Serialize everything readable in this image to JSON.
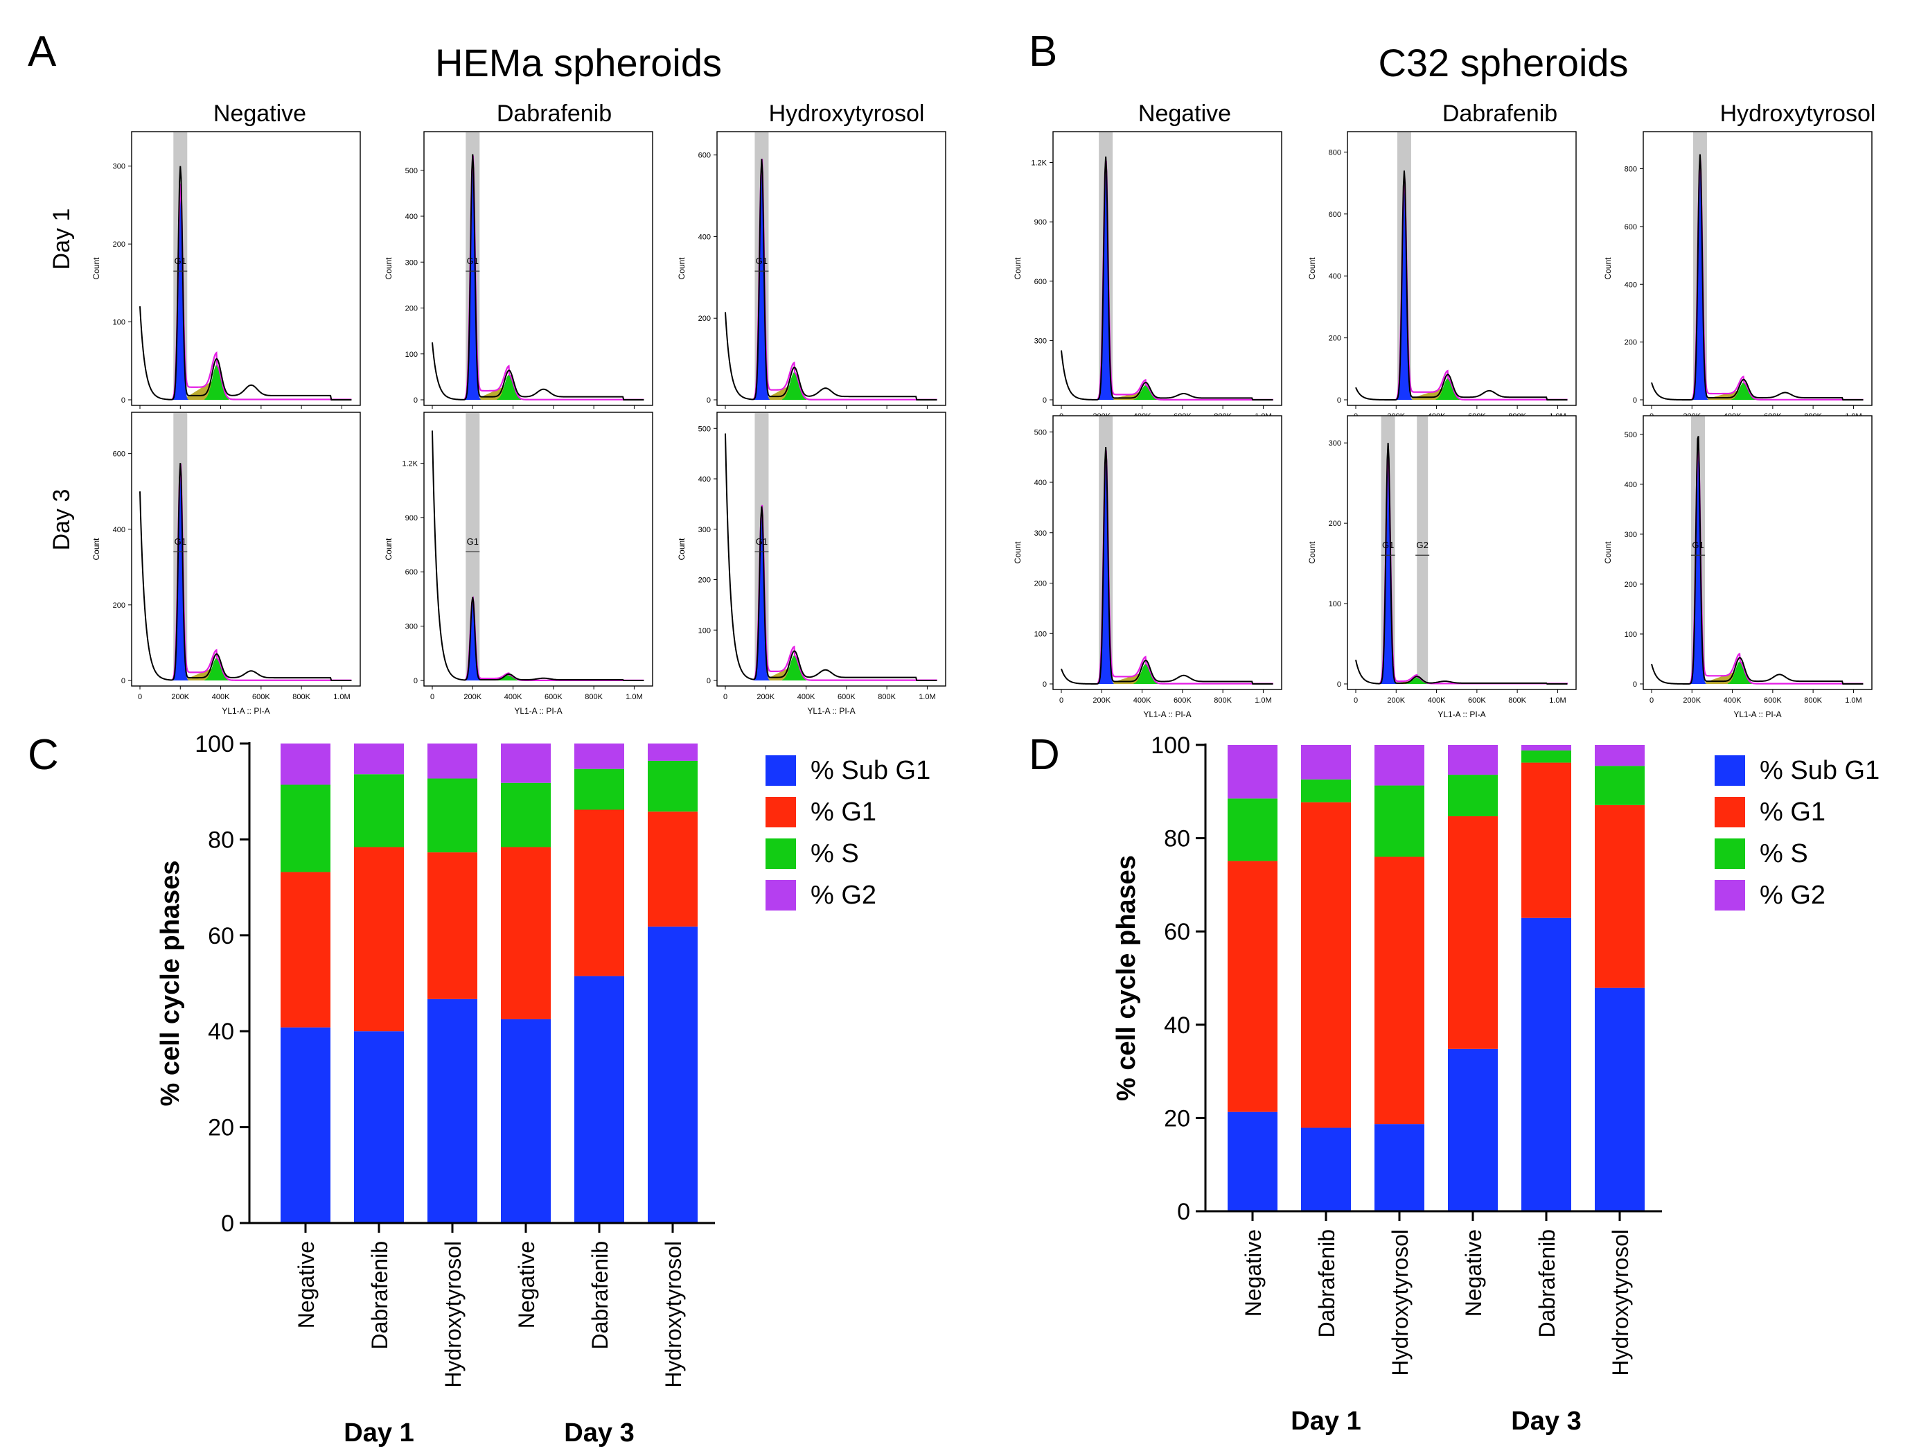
{
  "colors": {
    "sub_g1": "#1536ff",
    "g1": "#ff2a0c",
    "s": "#12cc14",
    "g2": "#b53ff0",
    "olive": "#b5a21a",
    "fit": "#e51ee5",
    "gate": "#c8c8c8",
    "trace": "#000000"
  },
  "panel_a": {
    "letter": "A",
    "title": "HEMa spheroids",
    "columns": [
      "Negative",
      "Dabrafenib",
      "Hydroxytyrosol"
    ],
    "rows": [
      "Day 1",
      "Day 3"
    ],
    "histograms": [
      {
        "id": "a-d1-neg",
        "yticks": [
          "0",
          "100",
          "200",
          "300"
        ],
        "ymax": 330,
        "peak": 300,
        "fitpeak": 265,
        "g1x": 200000,
        "g2peak": 45,
        "subg1": 120,
        "gates": [
          "G1"
        ],
        "gate_g2_x": null
      },
      {
        "id": "a-d1-dab",
        "yticks": [
          "0",
          "100",
          "200",
          "300",
          "400",
          "500"
        ],
        "ymax": 560,
        "peak": 535,
        "fitpeak": 520,
        "g1x": 200000,
        "g2peak": 55,
        "subg1": 125,
        "gates": [
          "G1"
        ],
        "gate_g2_x": null
      },
      {
        "id": "a-d1-hyd",
        "yticks": [
          "0",
          "200",
          "400",
          "600"
        ],
        "ymax": 630,
        "peak": 590,
        "fitpeak": 575,
        "g1x": 180000,
        "g2peak": 68,
        "subg1": 215,
        "gates": [
          "G1"
        ],
        "gate_g2_x": null
      },
      {
        "id": "a-d3-neg",
        "yticks": [
          "0",
          "200",
          "400",
          "600"
        ],
        "ymax": 680,
        "peak": 575,
        "fitpeak": 560,
        "g1x": 200000,
        "g2peak": 60,
        "subg1": 500,
        "gates": [
          "G1"
        ],
        "gate_g2_x": null
      },
      {
        "id": "a-d3-dab",
        "yticks": [
          "0",
          "300",
          "600",
          "900",
          "1.2K"
        ],
        "ymax": 1420,
        "peak": 460,
        "fitpeak": 450,
        "g1x": 200000,
        "g2peak": 30,
        "subg1": 1380,
        "gates": [
          "G1"
        ],
        "gate_g2_x": null
      },
      {
        "id": "a-d3-hyd",
        "yticks": [
          "0",
          "100",
          "200",
          "300",
          "400",
          "500"
        ],
        "ymax": 510,
        "peak": 345,
        "fitpeak": 335,
        "g1x": 180000,
        "g2peak": 50,
        "subg1": 490,
        "gates": [
          "G1"
        ],
        "gate_g2_x": null
      }
    ],
    "xticks": [
      "0",
      "200K",
      "400K",
      "600K",
      "800K",
      "1.0M"
    ],
    "xlabel": "YL1-A :: PI-A",
    "ylabel": "Count"
  },
  "panel_b": {
    "letter": "B",
    "title": "C32 spheroids",
    "columns": [
      "Negative",
      "Dabrafenib",
      "Hydroxytyrosol"
    ],
    "rows": [
      "Day 1",
      "Day 3"
    ],
    "histograms": [
      {
        "id": "b-d1-neg",
        "yticks": [
          "0",
          "300",
          "600",
          "900",
          "1.2K"
        ],
        "ymax": 1300,
        "peak": 1230,
        "fitpeak": 1200,
        "g1x": 220000,
        "g2peak": 75,
        "subg1": 250,
        "gates": [],
        "gate_g2_x": null
      },
      {
        "id": "b-d1-dab",
        "yticks": [
          "0",
          "200",
          "400",
          "600",
          "800"
        ],
        "ymax": 830,
        "peak": 740,
        "fitpeak": 700,
        "g1x": 240000,
        "g2peak": 70,
        "subg1": 40,
        "gates": [],
        "gate_g2_x": null
      },
      {
        "id": "b-d1-hyd",
        "yticks": [
          "0",
          "200",
          "400",
          "600",
          "800"
        ],
        "ymax": 890,
        "peak": 850,
        "fitpeak": 820,
        "g1x": 240000,
        "g2peak": 60,
        "subg1": 60,
        "gates": [],
        "gate_g2_x": null
      },
      {
        "id": "b-d3-neg",
        "yticks": [
          "0",
          "100",
          "200",
          "300",
          "400",
          "500"
        ],
        "ymax": 510,
        "peak": 470,
        "fitpeak": 455,
        "g1x": 220000,
        "g2peak": 40,
        "subg1": 30,
        "gates": [],
        "gate_g2_x": null
      },
      {
        "id": "b-d3-dab",
        "yticks": [
          "0",
          "100",
          "200",
          "300"
        ],
        "ymax": 320,
        "peak": 300,
        "fitpeak": 280,
        "g1x": 160000,
        "g2peak": 8,
        "subg1": 30,
        "gates": [
          "G1",
          "G2"
        ],
        "gate_g2_x": 330000
      },
      {
        "id": "b-d3-hyd",
        "yticks": [
          "0",
          "100",
          "200",
          "300",
          "400",
          "500"
        ],
        "ymax": 515,
        "peak": 500,
        "fitpeak": 470,
        "g1x": 230000,
        "g2peak": 45,
        "subg1": 40,
        "gates": [
          "G1"
        ],
        "gate_g2_x": null
      }
    ],
    "xticks": [
      "0",
      "200K",
      "400K",
      "600K",
      "800K",
      "1.0M"
    ],
    "xlabel": "YL1-A :: PI-A",
    "ylabel": "Count"
  },
  "chart_data": [
    {
      "type": "bar",
      "stacked": true,
      "panel": "C",
      "categories": [
        "Negative",
        "Dabrafenib",
        "Hydroxytyrosol",
        "Negative",
        "Dabrafenib",
        "Hydroxytyrosol"
      ],
      "groups": [
        {
          "label": "Day 1",
          "span": [
            0,
            2
          ]
        },
        {
          "label": "Day 3",
          "span": [
            3,
            5
          ]
        }
      ],
      "series": [
        {
          "name": "% Sub G1",
          "color_key": "sub_g1",
          "values": [
            40.8,
            40.0,
            46.7,
            42.5,
            51.5,
            61.8
          ]
        },
        {
          "name": "% G1",
          "color_key": "g1",
          "values": [
            32.4,
            38.4,
            30.6,
            35.9,
            34.7,
            24.0
          ]
        },
        {
          "name": "% S",
          "color_key": "s",
          "values": [
            18.2,
            15.2,
            15.4,
            13.4,
            8.5,
            10.6
          ]
        },
        {
          "name": "% G2",
          "color_key": "g2",
          "values": [
            8.6,
            6.4,
            7.3,
            8.2,
            5.3,
            3.6
          ]
        }
      ],
      "ylabel": "% cell cycle phases",
      "ylim": [
        0,
        100
      ],
      "yticks": [
        "0",
        "20",
        "40",
        "60",
        "80",
        "100"
      ],
      "legend_position": "right"
    },
    {
      "type": "bar",
      "stacked": true,
      "panel": "D",
      "categories": [
        "Negative",
        "Dabrafenib",
        "Hydroxytyrosol",
        "Negative",
        "Dabrafenib",
        "Hydroxytyrosol"
      ],
      "groups": [
        {
          "label": "Day 1",
          "span": [
            0,
            2
          ]
        },
        {
          "label": "Day 3",
          "span": [
            3,
            5
          ]
        }
      ],
      "series": [
        {
          "name": "% Sub G1",
          "color_key": "sub_g1",
          "values": [
            21.3,
            17.9,
            18.7,
            34.8,
            62.9,
            47.9
          ]
        },
        {
          "name": "% G1",
          "color_key": "g1",
          "values": [
            53.8,
            69.8,
            57.3,
            49.9,
            33.3,
            39.2
          ]
        },
        {
          "name": "% S",
          "color_key": "s",
          "values": [
            13.4,
            4.9,
            15.3,
            8.9,
            2.6,
            8.4
          ]
        },
        {
          "name": "% G2",
          "color_key": "g2",
          "values": [
            11.5,
            7.4,
            8.7,
            6.4,
            1.2,
            4.5
          ]
        }
      ],
      "ylabel": "% cell cycle phases",
      "ylim": [
        0,
        100
      ],
      "yticks": [
        "0",
        "20",
        "40",
        "60",
        "80",
        "100"
      ],
      "legend_position": "right"
    }
  ]
}
